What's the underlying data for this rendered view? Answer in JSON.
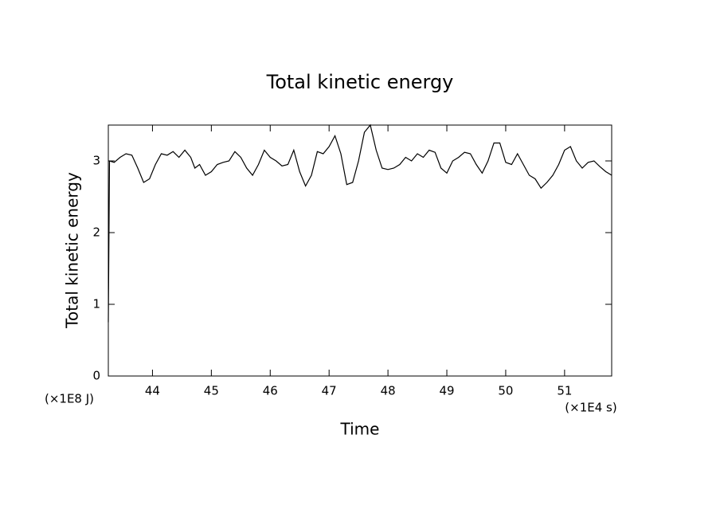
{
  "chart_data": {
    "type": "line",
    "title": "Total kinetic energy",
    "x_label": "Time",
    "y_label": "Total kinetic energy",
    "y_unit": "(×1E8 J)",
    "x_unit": "(×1E4 s)",
    "xlim": [
      43.25,
      51.8
    ],
    "ylim": [
      0,
      3.5
    ],
    "xticks": [
      44,
      45,
      46,
      47,
      48,
      49,
      50,
      51
    ],
    "yticks": [
      0,
      1,
      2,
      3
    ],
    "grid": false,
    "series": [
      {
        "color": "#000000",
        "x": [
          43.25,
          43.27,
          43.35,
          43.45,
          43.55,
          43.65,
          43.75,
          43.85,
          43.95,
          44.05,
          44.15,
          44.25,
          44.35,
          44.45,
          44.55,
          44.65,
          44.72,
          44.8,
          44.9,
          45.0,
          45.1,
          45.2,
          45.3,
          45.4,
          45.5,
          45.6,
          45.7,
          45.8,
          45.9,
          46.0,
          46.1,
          46.2,
          46.3,
          46.4,
          46.5,
          46.6,
          46.7,
          46.8,
          46.9,
          47.0,
          47.1,
          47.2,
          47.3,
          47.4,
          47.5,
          47.6,
          47.7,
          47.8,
          47.9,
          48.0,
          48.1,
          48.2,
          48.3,
          48.4,
          48.5,
          48.6,
          48.7,
          48.8,
          48.9,
          49.0,
          49.1,
          49.2,
          49.3,
          49.4,
          49.5,
          49.6,
          49.7,
          49.8,
          49.9,
          50.0,
          50.1,
          50.2,
          50.3,
          50.4,
          50.5,
          50.6,
          50.7,
          50.8,
          50.9,
          51.0,
          51.1,
          51.2,
          51.3,
          51.4,
          51.5,
          51.6,
          51.7,
          51.8
        ],
        "values": [
          0.75,
          3.0,
          2.98,
          3.05,
          3.1,
          3.08,
          2.9,
          2.7,
          2.75,
          2.95,
          3.1,
          3.08,
          3.13,
          3.05,
          3.15,
          3.05,
          2.9,
          2.95,
          2.8,
          2.85,
          2.95,
          2.98,
          3.0,
          3.13,
          3.05,
          2.9,
          2.8,
          2.95,
          3.15,
          3.05,
          3.0,
          2.93,
          2.95,
          3.15,
          2.85,
          2.65,
          2.8,
          3.13,
          3.1,
          3.2,
          3.35,
          3.1,
          2.67,
          2.7,
          3.0,
          3.4,
          3.5,
          3.15,
          2.9,
          2.88,
          2.9,
          2.95,
          3.05,
          3.0,
          3.1,
          3.05,
          3.15,
          3.12,
          2.9,
          2.83,
          3.0,
          3.05,
          3.12,
          3.1,
          2.95,
          2.83,
          3.0,
          3.25,
          3.25,
          2.98,
          2.95,
          3.1,
          2.95,
          2.8,
          2.75,
          2.62,
          2.7,
          2.8,
          2.95,
          3.15,
          3.2,
          3.0,
          2.9,
          2.98,
          3.0,
          2.92,
          2.85,
          2.8
        ]
      }
    ]
  }
}
